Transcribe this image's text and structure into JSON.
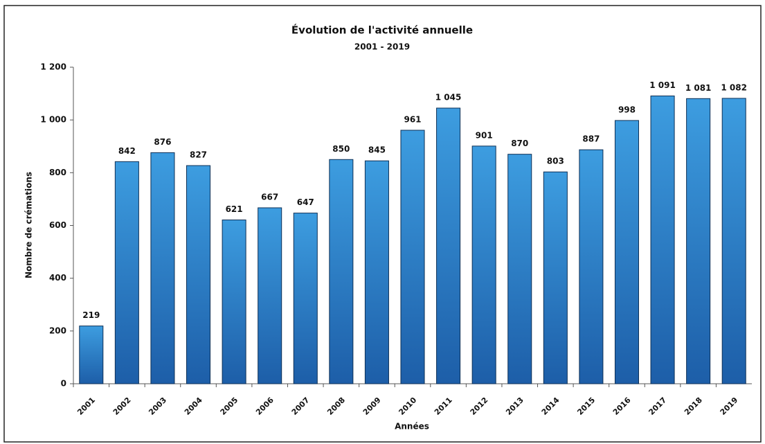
{
  "chart_data": {
    "type": "bar",
    "title": "Évolution de l'activité annuelle",
    "subtitle": "2001 - 2019",
    "x_label": "Années",
    "y_label": "Nombre de crémations",
    "categories": [
      "2001",
      "2002",
      "2003",
      "2004",
      "2005",
      "2006",
      "2007",
      "2008",
      "2009",
      "2010",
      "2011",
      "2012",
      "2013",
      "2014",
      "2015",
      "2016",
      "2017",
      "2018",
      "2019"
    ],
    "values": [
      219,
      842,
      876,
      827,
      621,
      667,
      647,
      850,
      845,
      961,
      1045,
      901,
      870,
      803,
      887,
      998,
      1091,
      1081,
      1082
    ],
    "value_labels": [
      "219",
      "842",
      "876",
      "827",
      "621",
      "667",
      "647",
      "850",
      "845",
      "961",
      "1 045",
      "901",
      "870",
      "803",
      "887",
      "998",
      "1 091",
      "1 081",
      "1 082"
    ],
    "color": "#2a7cc7",
    "ylim": [
      0,
      1200
    ],
    "yticks": [
      0,
      200,
      400,
      600,
      800,
      {
        "value": 1000,
        "label": "1 000"
      },
      {
        "value": 1200,
        "label": "1 200"
      }
    ],
    "grid": false
  }
}
